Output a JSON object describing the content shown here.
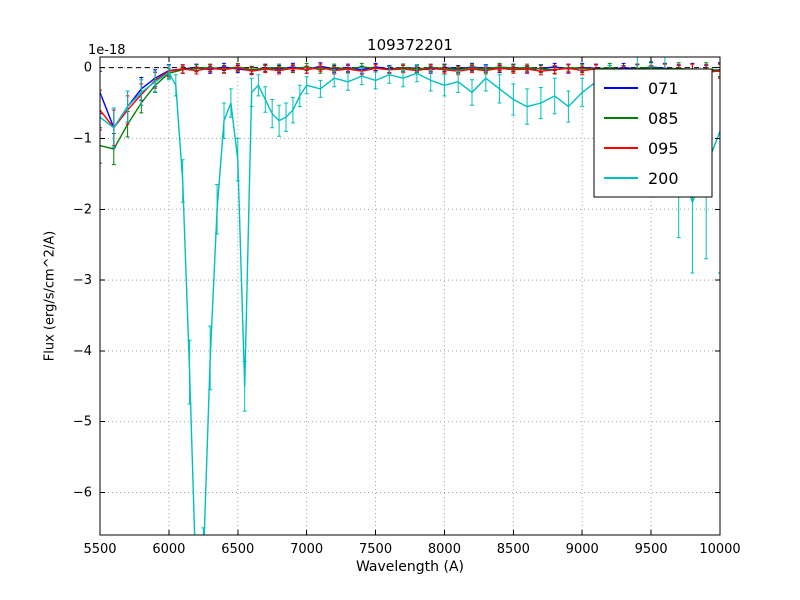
{
  "chart_data": {
    "type": "line",
    "errorbars": true,
    "title": "109372201",
    "xlabel": "Wavelength (A)",
    "ylabel": "Flux (erg/s/cm^2/A)",
    "y_offset_label": "1e-18",
    "y_unit_scale": 1e-18,
    "xlim": [
      5500,
      10000
    ],
    "ylim": [
      -6.6,
      0.15
    ],
    "xticks": [
      5500,
      6000,
      6500,
      7000,
      7500,
      8000,
      8500,
      9000,
      9500,
      10000
    ],
    "xtick_labels": [
      "5500",
      "6000",
      "6500",
      "7000",
      "7500",
      "8000",
      "8500",
      "9000",
      "9500",
      "10000"
    ],
    "yticks": [
      0,
      -1,
      -2,
      -3,
      -4,
      -5,
      -6
    ],
    "ytick_labels": [
      "0",
      "−1",
      "−2",
      "−3",
      "−4",
      "−5",
      "−6"
    ],
    "grid": true,
    "zero_line_dashed": true,
    "legend_position": "upper right",
    "colors": {
      "grid": "#a0a8a0",
      "axis": "#000000",
      "background": "#ffffff"
    },
    "series": [
      {
        "name": "071",
        "color": "#0000ff",
        "x_start": 5500,
        "x_step": 100,
        "values": [
          -0.35,
          -0.85,
          -0.55,
          -0.3,
          -0.15,
          -0.04,
          -0.02,
          0.0,
          -0.03,
          0.01,
          -0.02,
          -0.04,
          0.0,
          -0.02,
          0.01,
          -0.03,
          0.02,
          -0.02,
          0.0,
          -0.03,
          0.01,
          -0.02,
          0.0,
          -0.01,
          -0.03,
          0.0,
          -0.02,
          0.01,
          -0.01,
          -0.02,
          0.0,
          -0.03,
          -0.01,
          0.01,
          -0.02,
          0.0,
          -0.01,
          -0.03,
          0.0,
          -0.02,
          0.01,
          -0.01,
          -0.04,
          -0.02,
          -0.05,
          -0.03
        ],
        "errors": [
          0.3,
          0.28,
          0.22,
          0.16,
          0.12,
          0.08,
          0.06,
          0.05,
          0.05,
          0.05,
          0.05,
          0.05,
          0.05,
          0.05,
          0.05,
          0.05,
          0.05,
          0.05,
          0.05,
          0.05,
          0.05,
          0.05,
          0.05,
          0.05,
          0.05,
          0.05,
          0.05,
          0.05,
          0.05,
          0.05,
          0.05,
          0.05,
          0.05,
          0.05,
          0.06,
          0.06,
          0.06,
          0.06,
          0.06,
          0.06,
          0.07,
          0.07,
          0.08,
          0.08,
          0.09,
          0.1
        ]
      },
      {
        "name": "085",
        "color": "#008000",
        "x_start": 5500,
        "x_step": 100,
        "values": [
          -1.1,
          -1.15,
          -0.8,
          -0.5,
          -0.25,
          -0.08,
          -0.03,
          -0.01,
          0.0,
          -0.02,
          0.01,
          -0.03,
          -0.01,
          0.0,
          -0.02,
          0.01,
          -0.03,
          0.0,
          -0.02,
          0.01,
          -0.01,
          -0.03,
          0.0,
          -0.02,
          0.0,
          -0.01,
          -0.03,
          0.0,
          -0.02,
          0.01,
          -0.01,
          0.0,
          -0.02,
          -0.03,
          0.0,
          -0.01,
          -0.02,
          0.0,
          -0.03,
          -0.01,
          0.0,
          -0.02,
          -0.01,
          -0.03,
          -0.02,
          -0.04
        ],
        "errors": [
          0.25,
          0.22,
          0.18,
          0.14,
          0.1,
          0.07,
          0.05,
          0.05,
          0.05,
          0.05,
          0.05,
          0.05,
          0.05,
          0.05,
          0.05,
          0.05,
          0.05,
          0.05,
          0.05,
          0.05,
          0.05,
          0.05,
          0.05,
          0.05,
          0.05,
          0.05,
          0.05,
          0.05,
          0.05,
          0.05,
          0.05,
          0.05,
          0.05,
          0.05,
          0.05,
          0.06,
          0.06,
          0.06,
          0.06,
          0.06,
          0.07,
          0.07,
          0.08,
          0.08,
          0.09,
          0.09
        ]
      },
      {
        "name": "095",
        "color": "#ff0000",
        "x_start": 5500,
        "x_step": 100,
        "values": [
          -0.6,
          -0.85,
          -0.6,
          -0.38,
          -0.18,
          -0.05,
          -0.02,
          -0.04,
          -0.01,
          -0.03,
          0.0,
          -0.05,
          -0.02,
          -0.04,
          -0.01,
          -0.03,
          0.0,
          -0.04,
          -0.02,
          -0.05,
          -0.01,
          -0.03,
          -0.02,
          -0.04,
          -0.01,
          -0.03,
          -0.05,
          -0.02,
          -0.04,
          -0.01,
          -0.03,
          -0.02,
          -0.05,
          -0.03,
          -0.01,
          -0.04,
          -0.02,
          -0.03,
          -0.05,
          -0.02,
          -0.04,
          -0.03,
          -0.05,
          -0.04,
          -0.06,
          -0.05
        ],
        "errors": [
          0.28,
          0.25,
          0.2,
          0.15,
          0.11,
          0.08,
          0.06,
          0.05,
          0.05,
          0.05,
          0.05,
          0.05,
          0.05,
          0.05,
          0.05,
          0.05,
          0.05,
          0.05,
          0.05,
          0.05,
          0.05,
          0.05,
          0.05,
          0.05,
          0.05,
          0.05,
          0.05,
          0.05,
          0.05,
          0.05,
          0.05,
          0.05,
          0.05,
          0.06,
          0.06,
          0.06,
          0.06,
          0.06,
          0.07,
          0.07,
          0.07,
          0.08,
          0.08,
          0.09,
          0.09,
          0.1
        ]
      },
      {
        "name": "200",
        "color": "#00bfbf",
        "x": [
          5500,
          5600,
          5700,
          5800,
          5900,
          6000,
          6050,
          6100,
          6150,
          6200,
          6250,
          6300,
          6350,
          6400,
          6450,
          6500,
          6550,
          6600,
          6650,
          6700,
          6750,
          6800,
          6850,
          6900,
          6950,
          7000,
          7100,
          7200,
          7300,
          7400,
          7500,
          7600,
          7700,
          7800,
          7900,
          8000,
          8100,
          8200,
          8300,
          8400,
          8500,
          8600,
          8700,
          8800,
          8900,
          9000,
          9100,
          9200,
          9300,
          9400,
          9500,
          9600,
          9700,
          9800,
          9900,
          10000
        ],
        "values": [
          -0.7,
          -0.85,
          -0.55,
          -0.35,
          -0.2,
          -0.07,
          -0.25,
          -1.6,
          -4.3,
          -7.4,
          -7.0,
          -4.1,
          -2.0,
          -0.75,
          -0.5,
          -1.3,
          -4.5,
          -0.35,
          -0.25,
          -0.45,
          -0.65,
          -0.75,
          -0.7,
          -0.6,
          -0.4,
          -0.25,
          -0.3,
          -0.15,
          -0.2,
          -0.12,
          -0.18,
          -0.1,
          -0.15,
          -0.08,
          -0.18,
          -0.25,
          -0.2,
          -0.35,
          -0.15,
          -0.3,
          -0.45,
          -0.55,
          -0.5,
          -0.4,
          -0.55,
          -0.35,
          -0.2,
          -0.12,
          -0.18,
          -0.1,
          -0.25,
          -0.6,
          -1.3,
          -1.9,
          -1.4,
          -0.9
        ],
        "errors": [
          0.3,
          0.28,
          0.22,
          0.18,
          0.14,
          0.1,
          0.15,
          0.3,
          0.45,
          0.5,
          0.5,
          0.45,
          0.35,
          0.25,
          0.2,
          0.3,
          0.35,
          0.2,
          0.15,
          0.18,
          0.2,
          0.22,
          0.2,
          0.18,
          0.15,
          0.12,
          0.12,
          0.12,
          0.12,
          0.12,
          0.12,
          0.12,
          0.12,
          0.12,
          0.15,
          0.15,
          0.15,
          0.18,
          0.18,
          0.2,
          0.22,
          0.25,
          0.22,
          0.25,
          0.22,
          0.2,
          0.18,
          0.15,
          0.15,
          0.25,
          0.5,
          0.9,
          1.1,
          1.0,
          1.3,
          2.0
        ]
      }
    ]
  }
}
